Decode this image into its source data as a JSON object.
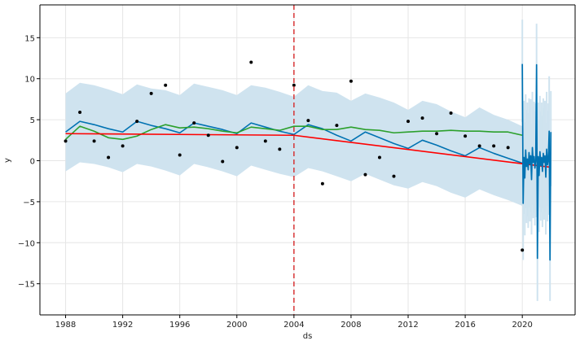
{
  "chart_data": {
    "type": "line",
    "title": "",
    "xlabel": "ds",
    "ylabel": "y",
    "xlim": [
      1986.2,
      2023.7
    ],
    "ylim": [
      -18.8,
      19
    ],
    "grid": true,
    "x_ticks": [
      1988,
      1992,
      1996,
      2000,
      2004,
      2008,
      2012,
      2016,
      2020
    ],
    "x_tick_labels": [
      "1988",
      "1992",
      "1996",
      "2000",
      "2004",
      "2008",
      "2012",
      "2016",
      "2020"
    ],
    "y_ticks": [
      -15,
      -10,
      -5,
      0,
      5,
      10,
      15
    ],
    "y_tick_labels": [
      "−15",
      "−10",
      "−5",
      "0",
      "5",
      "10",
      "15"
    ],
    "changepoint_x": 2004,
    "colors": {
      "observed": "#000000",
      "forecast": "#0072B2",
      "uncertainty": "#cfe3ef",
      "trend": "#ff0000",
      "second_line": "#2ca02c",
      "changepoint": "#d62728",
      "grid": "#e6e6e6",
      "axis": "#000000"
    },
    "series": [
      {
        "kind": "scatter",
        "x": [
          1988,
          1989,
          1990,
          1991,
          1992,
          1993,
          1994,
          1995,
          1996,
          1997,
          1998,
          1999,
          2000,
          2001,
          2002,
          2003,
          2004,
          2005,
          2006,
          2007,
          2008,
          2009,
          2010,
          2011,
          2012,
          2013,
          2014,
          2015,
          2016,
          2017,
          2018,
          2019,
          2020
        ],
        "y": [
          2.4,
          5.9,
          2.4,
          0.4,
          1.8,
          4.8,
          8.2,
          9.2,
          0.7,
          4.6,
          3.1,
          -0.1,
          1.6,
          12.0,
          2.4,
          1.4,
          9.2,
          4.9,
          -2.8,
          4.3,
          9.7,
          -1.7,
          0.4,
          -1.9,
          4.8,
          5.2,
          3.3,
          5.8,
          3.0,
          1.8,
          1.8,
          1.6,
          -10.9
        ]
      },
      {
        "kind": "line",
        "x": [
          1988,
          1989,
          1990,
          1991,
          1992,
          1993,
          1994,
          1995,
          1996,
          1997,
          1998,
          1999,
          2000,
          2001,
          2002,
          2003,
          2004,
          2005,
          2006,
          2007,
          2008,
          2009,
          2010,
          2011,
          2012,
          2013,
          2014,
          2015,
          2016,
          2017,
          2018,
          2019,
          2020
        ],
        "y": [
          3.5,
          4.8,
          4.4,
          3.9,
          3.5,
          4.8,
          4.3,
          3.9,
          3.4,
          4.6,
          4.2,
          3.8,
          3.3,
          4.6,
          4.1,
          3.6,
          3.2,
          4.4,
          3.9,
          3.1,
          2.4,
          3.5,
          2.8,
          2.1,
          1.5,
          2.5,
          1.9,
          1.2,
          0.6,
          1.6,
          0.9,
          0.3,
          -0.3
        ]
      },
      {
        "kind": "line",
        "x": [
          1988,
          1989,
          1990,
          1991,
          1992,
          1993,
          1994,
          1995,
          1996,
          1997,
          1998,
          1999,
          2000,
          2001,
          2002,
          2003,
          2004,
          2005,
          2006,
          2007,
          2008,
          2009,
          2010,
          2011,
          2012,
          2013,
          2014,
          2015,
          2016,
          2017,
          2018,
          2019,
          2020
        ],
        "y": [
          2.6,
          4.2,
          3.6,
          2.8,
          2.6,
          3.0,
          3.8,
          4.4,
          4.0,
          4.1,
          3.9,
          3.6,
          3.4,
          4.1,
          3.9,
          3.7,
          4.2,
          4.2,
          3.8,
          3.8,
          4.1,
          3.8,
          3.7,
          3.4,
          3.5,
          3.6,
          3.6,
          3.7,
          3.6,
          3.6,
          3.5,
          3.5,
          3.1
        ]
      },
      {
        "kind": "line",
        "x": [
          1988,
          2004,
          2022
        ],
        "y": [
          3.3,
          3.1,
          -0.8
        ]
      },
      {
        "kind": "band",
        "x": [
          1988,
          1989,
          1990,
          1991,
          1992,
          1993,
          1994,
          1995,
          1996,
          1997,
          1998,
          1999,
          2000,
          2001,
          2002,
          2003,
          2004,
          2005,
          2006,
          2007,
          2008,
          2009,
          2010,
          2011,
          2012,
          2013,
          2014,
          2015,
          2016,
          2017,
          2018,
          2019,
          2020
        ],
        "lower": [
          -1.3,
          -0.2,
          -0.4,
          -0.8,
          -1.4,
          -0.4,
          -0.7,
          -1.2,
          -1.8,
          -0.4,
          -0.8,
          -1.3,
          -1.9,
          -0.6,
          -1.1,
          -1.6,
          -2.0,
          -0.9,
          -1.3,
          -1.9,
          -2.5,
          -1.6,
          -2.3,
          -3.0,
          -3.4,
          -2.6,
          -3.1,
          -3.9,
          -4.5,
          -3.5,
          -4.2,
          -4.8,
          -5.5
        ],
        "upper": [
          8.2,
          9.5,
          9.2,
          8.7,
          8.1,
          9.3,
          8.8,
          8.6,
          8.0,
          9.4,
          9.0,
          8.6,
          8.0,
          9.2,
          8.9,
          8.4,
          7.8,
          9.2,
          8.5,
          8.3,
          7.3,
          8.2,
          7.7,
          7.1,
          6.2,
          7.3,
          6.9,
          6.0,
          5.3,
          6.5,
          5.6,
          5.0,
          4.2
        ]
      },
      {
        "kind": "forecast-oscillation",
        "x_start": 2020,
        "x_end": 2022,
        "y_values": [
          11.8,
          -5.2,
          0.4,
          -2.1,
          1.3,
          -0.7,
          0.2,
          -1.1,
          1.0,
          -0.4,
          0.6,
          -2.3,
          1.6,
          -0.2,
          0.5,
          -0.9,
          0.1,
          11.7,
          -11.9,
          0.5,
          -1.8,
          1.1,
          -0.6,
          0.4,
          -1.3,
          0.9,
          -0.2,
          0.6,
          -2.0,
          1.4,
          -0.5,
          0.2,
          3.6,
          -12.1,
          3.5
        ],
        "band_lower": [
          4.7,
          -12.1,
          -6.5,
          -9.1,
          -5.8,
          -7.6,
          -6.8,
          -8.2,
          -5.7,
          -7.4,
          -6.3,
          -9.0,
          -5.4,
          -7.0,
          -6.4,
          -7.9,
          -6.9,
          5.2,
          -17.1,
          -6.2,
          -8.7,
          -5.7,
          -7.3,
          -6.3,
          -8.1,
          -5.8,
          -7.2,
          -6.3,
          -9.0,
          -5.5,
          -7.4,
          -6.6,
          -3.0,
          -17.1,
          -3.1
        ],
        "band_upper": [
          17.2,
          1.6,
          7.3,
          4.7,
          8.1,
          6.2,
          7.1,
          5.8,
          7.6,
          6.4,
          7.5,
          4.5,
          8.4,
          6.6,
          7.2,
          6.0,
          7.0,
          16.7,
          -5.7,
          7.1,
          4.9,
          7.9,
          6.0,
          7.1,
          5.5,
          7.6,
          6.4,
          7.3,
          4.6,
          8.4,
          6.1,
          7.0,
          10.3,
          -5.8,
          8.5
        ]
      }
    ]
  }
}
